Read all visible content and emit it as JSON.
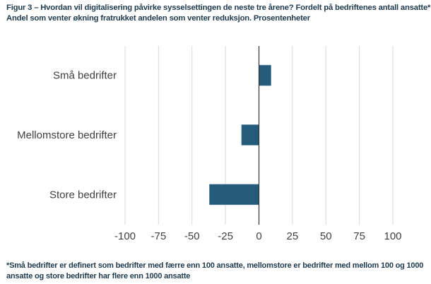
{
  "title_line1": "Figur 3 – Hvordan vil digitalisering påvirke sysselsettingen de neste tre årene? Fordelt på bedriftenes antall ansatte*.",
  "title_line2": "Andel som venter økning fratrukket andelen som venter reduksjon. Prosentenheter",
  "footnote_line1": "*Små bedrifter er definert som bedrifter med færre enn 100 ansatte, mellomstore er bedrifter med mellom 100 og 1000",
  "footnote_line2": "ansatte og store bedrifter har flere enn 1000 ansatte",
  "chart_data": {
    "type": "bar",
    "orientation": "horizontal",
    "categories": [
      "Små bedrifter",
      "Mellomstore bedrifter",
      "Store bedrifter"
    ],
    "values": [
      9,
      -13,
      -37
    ],
    "xlim": [
      -100,
      100
    ],
    "xticks": [
      -100,
      -75,
      -50,
      -25,
      0,
      25,
      50,
      75,
      100
    ],
    "xtick_labels": [
      "-100",
      "-75",
      "-50",
      "-25",
      "0",
      "25",
      "50",
      "75",
      "100"
    ],
    "grid": true,
    "bar_color": "#245a7a",
    "xlabel": "",
    "ylabel": ""
  }
}
